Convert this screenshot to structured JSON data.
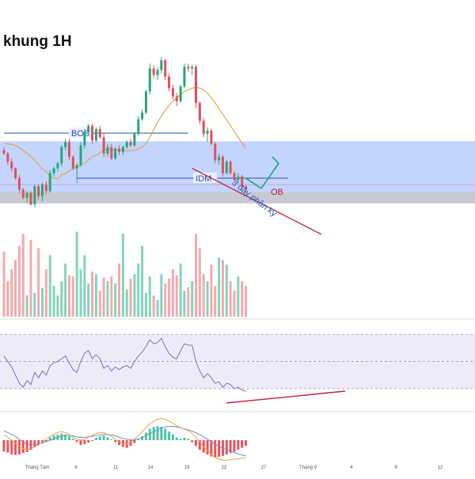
{
  "chart_data": [
    {
      "type": "candlestick",
      "title": "khung 1H",
      "candles": [
        [
          110.0,
          112.0,
          107.0,
          108.0
        ],
        [
          108.0,
          109.0,
          101.0,
          103.0
        ],
        [
          103.0,
          105.0,
          97.0,
          99.0
        ],
        [
          99.0,
          99.5,
          92.0,
          93.0
        ],
        [
          93.0,
          95.0,
          84.0,
          86.0
        ],
        [
          86.0,
          87.0,
          80.0,
          81.0
        ],
        [
          81.0,
          85.0,
          78.0,
          84.0
        ],
        [
          84.0,
          85.0,
          76.0,
          77.0
        ],
        [
          77.0,
          89.0,
          75.0,
          88.0
        ],
        [
          88.0,
          89.0,
          80.0,
          82.0
        ],
        [
          82.0,
          90.0,
          79.0,
          89.0
        ],
        [
          89.0,
          91.0,
          83.0,
          85.0
        ],
        [
          85.0,
          98.0,
          84.0,
          96.0
        ],
        [
          96.0,
          100.0,
          94.0,
          99.0
        ],
        [
          99.0,
          103.0,
          97.0,
          102.0
        ],
        [
          102.0,
          113.0,
          100.0,
          112.0
        ],
        [
          112.0,
          117.0,
          110.0,
          115.0
        ],
        [
          115.0,
          117.0,
          104.0,
          106.0
        ],
        [
          106.0,
          107.0,
          98.0,
          99.0
        ],
        [
          99.0,
          102.0,
          90.0,
          101.0
        ],
        [
          101.0,
          115.0,
          100.0,
          113.0
        ],
        [
          113.0,
          123.0,
          111.0,
          121.0
        ],
        [
          121.0,
          126.0,
          119.0,
          125.0
        ],
        [
          125.0,
          126.0,
          114.0,
          116.0
        ],
        [
          116.0,
          124.0,
          115.0,
          123.0
        ],
        [
          123.0,
          125.0,
          117.0,
          118.0
        ],
        [
          118.0,
          120.0,
          106.0,
          108.0
        ],
        [
          108.0,
          114.0,
          106.0,
          112.0
        ],
        [
          112.0,
          114.0,
          104.0,
          105.0
        ],
        [
          105.0,
          112.0,
          104.0,
          111.0
        ],
        [
          111.0,
          113.0,
          107.0,
          109.0
        ],
        [
          109.0,
          113.0,
          107.0,
          112.0
        ],
        [
          112.0,
          116.0,
          111.0,
          115.0
        ],
        [
          115.0,
          117.0,
          112.0,
          113.0
        ],
        [
          113.0,
          121.0,
          112.0,
          120.0
        ],
        [
          120.0,
          131.0,
          119.0,
          129.0
        ],
        [
          129.0,
          135.0,
          128.0,
          133.0
        ],
        [
          133.0,
          147.0,
          132.0,
          146.0
        ],
        [
          146.0,
          163.0,
          144.0,
          160.0
        ],
        [
          160.0,
          162.0,
          154.0,
          156.0
        ],
        [
          156.0,
          161.0,
          153.0,
          159.0
        ],
        [
          159.0,
          167.0,
          157.0,
          165.0
        ],
        [
          165.0,
          166.0,
          153.0,
          155.0
        ],
        [
          155.0,
          157.0,
          146.0,
          148.0
        ],
        [
          148.0,
          150.0,
          141.0,
          143.0
        ],
        [
          143.0,
          145.0,
          137.0,
          140.0
        ],
        [
          140.0,
          150.0,
          139.0,
          149.0
        ],
        [
          149.0,
          163.0,
          148.0,
          161.0
        ],
        [
          161.0,
          163.0,
          158.0,
          160.0
        ],
        [
          160.0,
          162.0,
          156.0,
          161.0
        ],
        [
          161.0,
          162.0,
          136.0,
          139.0
        ],
        [
          139.0,
          140.0,
          126.0,
          128.0
        ],
        [
          128.0,
          130.0,
          118.0,
          120.0
        ],
        [
          120.0,
          124.0,
          115.0,
          122.0
        ],
        [
          122.0,
          123.0,
          113.0,
          114.0
        ],
        [
          114.0,
          115.0,
          102.0,
          104.0
        ],
        [
          104.0,
          108.0,
          101.0,
          106.0
        ],
        [
          106.0,
          107.0,
          94.0,
          96.0
        ],
        [
          96.0,
          104.0,
          95.0,
          103.0
        ],
        [
          103.0,
          104.0,
          95.0,
          96.0
        ],
        [
          96.0,
          97.0,
          90.0,
          92.0
        ],
        [
          92.0,
          96.0,
          89.0,
          94.0
        ],
        [
          94.0,
          95.0,
          86.0,
          88.0
        ],
        [
          88.0,
          89.0,
          84.0,
          86.0
        ]
      ],
      "ma": [
        114.0,
        114.0,
        113.5,
        113.0,
        111.5,
        110.0,
        108.0,
        106.0,
        104.0,
        101.0,
        98.5,
        97.0,
        94.0,
        93.0,
        92.5,
        95.0,
        96.0,
        97.5,
        99.0,
        99.5,
        101.0,
        102.0,
        104.0,
        106.0,
        107.0,
        108.5,
        110.0,
        110.5,
        110.5,
        110.5,
        110.3,
        110.0,
        109.8,
        109.8,
        110.0,
        110.5,
        112.0,
        114.0,
        118.0,
        122.5,
        127.0,
        131.0,
        134.5,
        137.5,
        140.0,
        142.0,
        144.0,
        146.0,
        147.0,
        148.0,
        148.5,
        148.0,
        147.0,
        145.0,
        142.0,
        139.0,
        135.5,
        132.0,
        128.5,
        125.0,
        121.5,
        118.0,
        114.5,
        111.0
      ],
      "ylim": [
        77,
        168
      ],
      "zones": [
        {
          "name": "supply-demand",
          "from": 84.5,
          "to": 115.5,
          "color": "#bcd0ff"
        },
        {
          "name": "order-block",
          "from": 77.5,
          "to": 84.5,
          "color": "#c3c4cc"
        }
      ],
      "levels": [
        {
          "label": "BOS",
          "price": 120.5,
          "from": 0,
          "to": 48,
          "color": "#2b4fae"
        },
        {
          "label": "IDM",
          "price": 93.0,
          "from": 19,
          "to": 74,
          "color": "#2b4fae"
        }
      ],
      "annotations": [
        {
          "text": "OB",
          "color": "#b11e37"
        },
        {
          "text": "3 đáy phân kỳ",
          "color": "#1f5fcf"
        }
      ],
      "projection": {
        "color": "#18a67f"
      },
      "divergence_line_color": "#c2253b"
    },
    {
      "type": "bar",
      "name": "volume",
      "values": [
        55,
        30,
        40,
        48,
        60,
        70,
        18,
        65,
        20,
        58,
        24,
        40,
        52,
        26,
        18,
        30,
        45,
        35,
        34,
        72,
        40,
        52,
        28,
        38,
        36,
        22,
        33,
        30,
        34,
        28,
        45,
        70,
        23,
        32,
        36,
        45,
        60,
        20,
        34,
        18,
        14,
        36,
        28,
        32,
        40,
        35,
        45,
        22,
        25,
        30,
        70,
        58,
        36,
        30,
        44,
        26,
        50,
        48,
        44,
        30,
        22,
        34,
        30,
        26
      ],
      "up_color": "#83d4bb",
      "down_color": "#f4a9ae"
    },
    {
      "type": "line",
      "name": "rsi",
      "values": [
        54,
        50,
        46,
        40,
        34,
        31,
        36,
        33,
        42,
        38,
        43,
        40,
        47,
        49,
        50,
        52,
        54,
        49,
        44,
        42,
        50,
        56,
        58,
        52,
        55,
        52,
        45,
        47,
        43,
        46,
        44,
        46,
        47,
        45,
        50,
        54,
        57,
        61,
        66,
        63,
        64,
        67,
        61,
        56,
        53,
        52,
        58,
        63,
        62,
        62,
        50,
        43,
        38,
        41,
        38,
        34,
        35,
        31,
        34,
        33,
        30,
        31,
        29,
        28
      ],
      "ylim": [
        20,
        76
      ],
      "bands": [
        30,
        50,
        70
      ],
      "color": "#7c7ec4"
    },
    {
      "type": "bar",
      "name": "macd",
      "values": [
        -2.4,
        -2.6,
        -3.0,
        -3.1,
        -3.0,
        -2.7,
        -2.5,
        -2.0,
        -1.5,
        -1.0,
        -0.6,
        -0.3,
        0.6,
        1.0,
        1.2,
        1.4,
        1.2,
        0.8,
        0.3,
        -0.4,
        -1.0,
        -0.8,
        -0.5,
        -0.2,
        0.5,
        0.8,
        1.0,
        0.6,
        0.2,
        -0.4,
        -1.0,
        -1.4,
        -1.6,
        -1.2,
        -0.6,
        0.2,
        0.8,
        1.6,
        2.4,
        2.8,
        3.0,
        2.8,
        2.4,
        1.8,
        1.2,
        0.6,
        0.3,
        0.5,
        0.3,
        -0.4,
        -1.2,
        -2.0,
        -2.6,
        -3.0,
        -3.4,
        -3.6,
        -3.5,
        -3.3,
        -3.0,
        -2.7,
        -2.4,
        -2.0,
        -1.6,
        -1.2
      ],
      "line_macd": [
        1.2,
        0.6,
        0.0,
        -0.6,
        -1.2,
        -1.8,
        -2.0,
        -1.8,
        -1.4,
        -1.0,
        -0.4,
        0.2,
        0.8,
        1.2,
        1.6,
        1.8,
        1.6,
        1.2,
        0.6,
        0.2,
        0.0,
        0.2,
        0.6,
        1.0,
        1.4,
        1.6,
        1.6,
        1.2,
        0.8,
        0.2,
        -0.4,
        -0.8,
        -0.8,
        -0.4,
        0.2,
        1.0,
        1.8,
        2.6,
        3.4,
        4.0,
        4.4,
        4.6,
        4.4,
        4.0,
        3.6,
        3.0,
        2.6,
        2.4,
        2.0,
        1.4,
        0.6,
        -0.4,
        -1.4,
        -2.2,
        -3.0,
        -3.6,
        -4.0,
        -4.2,
        -4.2,
        -4.1,
        -4.0,
        -3.9,
        -3.8,
        -3.7
      ],
      "line_signal": [
        2.0,
        1.6,
        1.2,
        0.8,
        0.2,
        -0.4,
        -0.8,
        -1.0,
        -1.0,
        -0.8,
        -0.6,
        -0.3,
        0.0,
        0.3,
        0.6,
        0.9,
        1.0,
        1.0,
        0.9,
        0.7,
        0.6,
        0.6,
        0.7,
        0.8,
        1.0,
        1.1,
        1.2,
        1.2,
        1.1,
        0.9,
        0.6,
        0.4,
        0.2,
        0.1,
        0.1,
        0.3,
        0.6,
        1.0,
        1.4,
        1.8,
        2.2,
        2.6,
        2.8,
        2.9,
        2.9,
        2.8,
        2.6,
        2.4,
        2.2,
        1.9,
        1.6,
        1.2,
        0.7,
        0.2,
        -0.3,
        -0.8,
        -1.3,
        -1.7,
        -2.0,
        -2.3,
        -2.6,
        -2.9,
        -3.1,
        -3.3
      ],
      "ylim": [
        -5,
        5
      ],
      "up_color": "#4ec6a3",
      "down_color": "#e8535f",
      "macd_color": "#f0a13a",
      "signal_color": "#6a8fd8"
    }
  ],
  "x_axis": {
    "tick_labels": [
      "Tháng Tám",
      "6",
      "11",
      "14",
      "19",
      "22",
      "27",
      "Tháng 9",
      "4",
      "9",
      "12"
    ]
  }
}
